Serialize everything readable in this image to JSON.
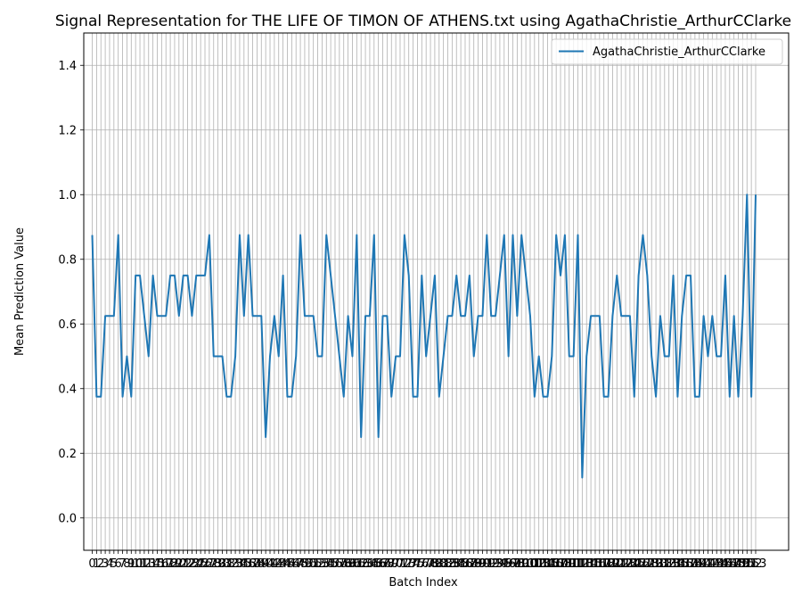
{
  "chart_data": {
    "type": "line",
    "title": "Signal Representation for THE LIFE OF TIMON OF ATHENS.txt using AgathaChristie_ArthurCClarke",
    "xlabel": "Batch Index",
    "ylabel": "Mean Prediction Value",
    "xlim": [
      0,
      153
    ],
    "ylim": [
      -0.1,
      1.5
    ],
    "yticks": [
      0.0,
      0.2,
      0.4,
      0.6,
      0.8,
      1.0,
      1.2,
      1.4
    ],
    "ytick_labels": [
      "0.0",
      "0.2",
      "0.4",
      "0.6",
      "0.8",
      "1.0",
      "1.2",
      "1.4"
    ],
    "x_tick_step": 1,
    "grid": true,
    "legend_position": "top-right",
    "line_color": "#1f77b4",
    "series": [
      {
        "name": "AgathaChristie_ArthurCClarke",
        "values": [
          0.875,
          0.375,
          0.375,
          0.625,
          0.625,
          0.625,
          0.875,
          0.375,
          0.5,
          0.375,
          0.75,
          0.75,
          0.625,
          0.5,
          0.75,
          0.625,
          0.625,
          0.625,
          0.75,
          0.75,
          0.625,
          0.75,
          0.75,
          0.625,
          0.75,
          0.75,
          0.75,
          0.875,
          0.5,
          0.5,
          0.5,
          0.375,
          0.375,
          0.5,
          0.875,
          0.625,
          0.875,
          0.625,
          0.625,
          0.625,
          0.25,
          0.5,
          0.625,
          0.5,
          0.75,
          0.375,
          0.375,
          0.5,
          0.875,
          0.625,
          0.625,
          0.625,
          0.5,
          0.5,
          0.875,
          0.75,
          0.625,
          0.5,
          0.375,
          0.625,
          0.5,
          0.875,
          0.25,
          0.625,
          0.625,
          0.875,
          0.25,
          0.625,
          0.625,
          0.375,
          0.5,
          0.5,
          0.875,
          0.75,
          0.375,
          0.375,
          0.75,
          0.5,
          0.625,
          0.75,
          0.375,
          0.5,
          0.625,
          0.625,
          0.75,
          0.625,
          0.625,
          0.75,
          0.5,
          0.625,
          0.625,
          0.875,
          0.625,
          0.625,
          0.75,
          0.875,
          0.5,
          0.875,
          0.625,
          0.875,
          0.75,
          0.625,
          0.375,
          0.5,
          0.375,
          0.375,
          0.5,
          0.875,
          0.75,
          0.875,
          0.5,
          0.5,
          0.875,
          0.125,
          0.5,
          0.625,
          0.625,
          0.625,
          0.375,
          0.375,
          0.625,
          0.75,
          0.625,
          0.625,
          0.625,
          0.375,
          0.75,
          0.875,
          0.75,
          0.5,
          0.375,
          0.625,
          0.5,
          0.5,
          0.75,
          0.375,
          0.625,
          0.75,
          0.75,
          0.375,
          0.375,
          0.625,
          0.5,
          0.625,
          0.5,
          0.5,
          0.75,
          0.375,
          0.625,
          0.375,
          0.625,
          1.0,
          0.375,
          1.0
        ]
      }
    ]
  }
}
